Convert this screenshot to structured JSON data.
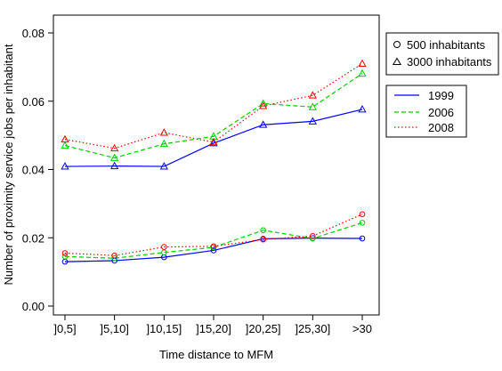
{
  "chart_data": {
    "type": "line",
    "xlabel": "Time distance to MFM",
    "ylabel": "Number of proximity service jobs per inhabitant",
    "categories": [
      "]0,5]",
      "]5,10]",
      "]10,15]",
      "]15,20]",
      "]20,25]",
      "]25,30]",
      ">30"
    ],
    "ylim": [
      0,
      0.08
    ],
    "yticks": [
      "0.00",
      "0.02",
      "0.04",
      "0.06",
      "0.08"
    ],
    "grid": false,
    "legend_placement": "top-right",
    "marker_legend": [
      {
        "marker": "circle",
        "label": "500 inhabitants"
      },
      {
        "marker": "triangle",
        "label": "3000 inhabitants"
      }
    ],
    "series": [
      {
        "name": "1999",
        "color": "#0000ff",
        "dash": "solid",
        "group": "500 inhabitants",
        "marker": "circle",
        "values": [
          0.013,
          0.0133,
          0.0143,
          0.0163,
          0.0197,
          0.0199,
          0.0198
        ]
      },
      {
        "name": "2006",
        "color": "#00cc00",
        "dash": "dashed",
        "group": "500 inhabitants",
        "marker": "circle",
        "values": [
          0.0145,
          0.014,
          0.0157,
          0.0172,
          0.0222,
          0.0198,
          0.0244
        ]
      },
      {
        "name": "2008",
        "color": "#ff0000",
        "dash": "dotted",
        "group": "500 inhabitants",
        "marker": "circle",
        "values": [
          0.0155,
          0.0148,
          0.0173,
          0.0175,
          0.0195,
          0.0205,
          0.0269
        ]
      },
      {
        "name": "1999",
        "color": "#0000ff",
        "dash": "solid",
        "group": "3000 inhabitants",
        "marker": "triangle",
        "values": [
          0.0409,
          0.041,
          0.0409,
          0.0477,
          0.0531,
          0.0541,
          0.0576
        ]
      },
      {
        "name": "2006",
        "color": "#00cc00",
        "dash": "dashed",
        "group": "3000 inhabitants",
        "marker": "triangle",
        "values": [
          0.047,
          0.0434,
          0.0475,
          0.0497,
          0.0593,
          0.0583,
          0.0681
        ]
      },
      {
        "name": "2008",
        "color": "#ff0000",
        "dash": "dotted",
        "group": "3000 inhabitants",
        "marker": "triangle",
        "values": [
          0.0488,
          0.0462,
          0.0508,
          0.048,
          0.0586,
          0.0617,
          0.071
        ]
      }
    ],
    "line_legend": [
      "1999",
      "2006",
      "2008"
    ]
  }
}
